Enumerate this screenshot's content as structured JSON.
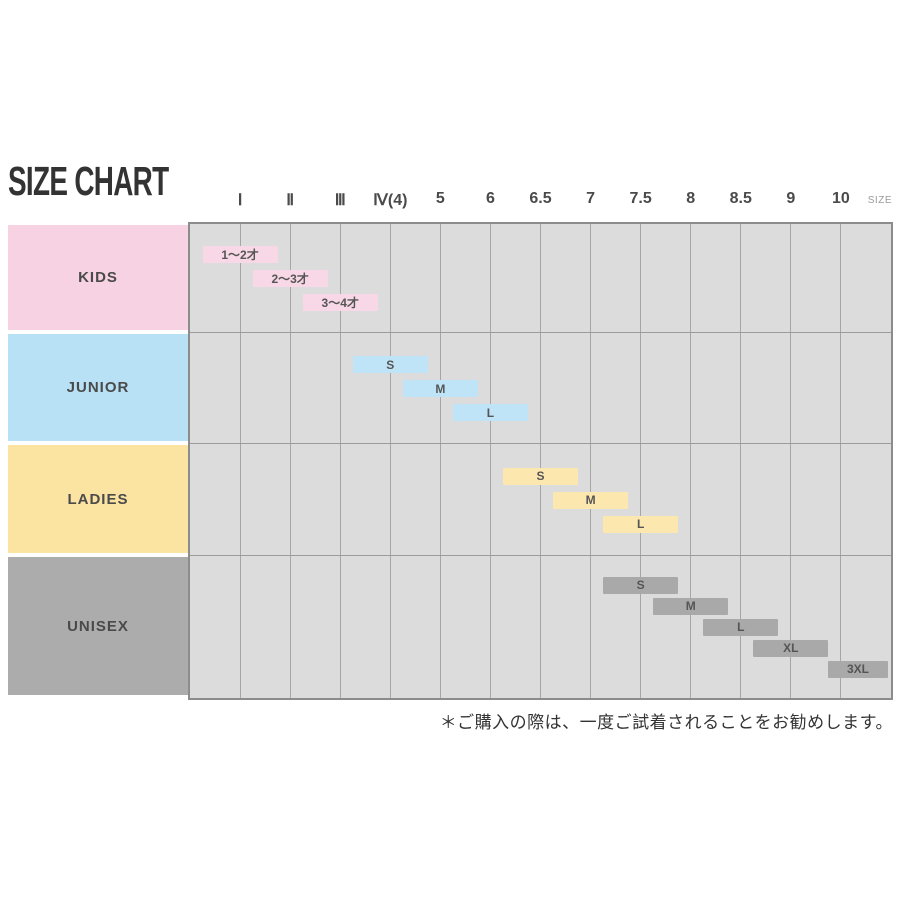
{
  "title": "SIZE CHART",
  "header": {
    "size_caption": "SIZE"
  },
  "footer": {
    "note": "＊ご購入の際は、一度ご試着されることをお勧めします。"
  },
  "colors": {
    "grid_background": "#dcdcdc",
    "grid_border": "#8c8c8c",
    "gridline": "#a6a6a6",
    "kids": "#f6d2e2",
    "junior": "#b9e1f5",
    "ladies": "#fbe3a2",
    "unisex": "#acacac",
    "text": "#4a4a4a"
  },
  "chart_data": {
    "type": "bar",
    "title": "SIZE CHART",
    "xlabel": "SIZE",
    "legend_position": "left",
    "grid": true,
    "columns": [
      "Ⅰ",
      "Ⅱ",
      "Ⅲ",
      "Ⅳ(4)",
      "5",
      "6",
      "6.5",
      "7",
      "7.5",
      "8",
      "8.5",
      "9",
      "10"
    ],
    "rows": [
      {
        "label": "KIDS",
        "label_color": "#f6d2e2",
        "bar_color": "#f8d8e7",
        "bars": [
          {
            "label": "1～2才",
            "at": "Ⅰ"
          },
          {
            "label": "2～3才",
            "at": "Ⅱ"
          },
          {
            "label": "3～4才",
            "at": "Ⅲ"
          }
        ]
      },
      {
        "label": "JUNIOR",
        "label_color": "#b9e1f5",
        "bar_color": "#bfe4f8",
        "bars": [
          {
            "label": "S",
            "at": "Ⅳ(4)"
          },
          {
            "label": "M",
            "at": "5"
          },
          {
            "label": "L",
            "at": "6"
          }
        ]
      },
      {
        "label": "LADIES",
        "label_color": "#fbe3a2",
        "bar_color": "#fce7af",
        "bars": [
          {
            "label": "S",
            "at": "6.5"
          },
          {
            "label": "M",
            "at": "7"
          },
          {
            "label": "L",
            "at": "7.5"
          }
        ]
      },
      {
        "label": "UNISEX",
        "label_color": "#acacac",
        "bar_color": "#a9a9a9",
        "bars": [
          {
            "label": "S",
            "at": "7.5"
          },
          {
            "label": "M",
            "at": "8"
          },
          {
            "label": "L",
            "at": "8.5"
          },
          {
            "label": "XL",
            "at": "9"
          },
          {
            "label": "3XL",
            "at": "10",
            "align": "right-edge"
          }
        ]
      }
    ]
  }
}
